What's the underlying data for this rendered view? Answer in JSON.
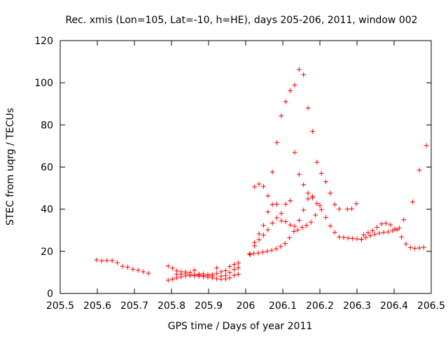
{
  "chart_data": {
    "type": "scatter",
    "title": "Rec. xmis (Lon=105, Lat=-10, h=HE), days 205-206, 2011, window 002",
    "xlabel": "GPS time / Days of year 2011",
    "ylabel": "STEC from uqrg / TECUs",
    "xlim": [
      205.5,
      206.5
    ],
    "ylim": [
      0,
      120
    ],
    "xticks": [
      205.5,
      205.6,
      205.7,
      205.8,
      205.9,
      206,
      206.1,
      206.2,
      206.3,
      206.4,
      206.5
    ],
    "xtick_labels": [
      "205.5",
      "205.6",
      "205.7",
      "205.8",
      "205.9",
      "206",
      "206.1",
      "206.2",
      "206.3",
      "206.4",
      "206.5"
    ],
    "yticks": [
      0,
      20,
      40,
      60,
      80,
      100,
      120
    ],
    "ytick_labels": [
      "0",
      "20",
      "40",
      "60",
      "80",
      "100",
      "120"
    ],
    "grid": false,
    "marker": "+",
    "color": "#ff0000",
    "series": [
      {
        "points": [
          [
            205.598,
            15.9
          ],
          [
            205.612,
            15.5
          ],
          [
            205.626,
            15.6
          ],
          [
            205.64,
            15.6
          ],
          [
            205.654,
            14.6
          ],
          [
            205.668,
            12.9
          ],
          [
            205.682,
            12.5
          ],
          [
            205.696,
            11.5
          ],
          [
            205.71,
            11.0
          ],
          [
            205.724,
            10.3
          ],
          [
            205.738,
            9.6
          ],
          [
            205.791,
            13.0
          ],
          [
            205.803,
            12.0
          ],
          [
            205.814,
            10.7
          ],
          [
            205.826,
            10.3
          ],
          [
            205.838,
            10.2
          ],
          [
            205.85,
            9.9
          ],
          [
            205.862,
            11.0
          ],
          [
            205.874,
            9.2
          ],
          [
            205.886,
            9.3
          ],
          [
            205.898,
            9.0
          ],
          [
            205.91,
            9.0
          ],
          [
            205.922,
            9.5
          ],
          [
            205.934,
            10.3
          ],
          [
            205.946,
            10.8
          ],
          [
            205.957,
            12.8
          ],
          [
            205.969,
            13.8
          ],
          [
            205.98,
            14.5
          ],
          [
            205.791,
            6.3
          ],
          [
            205.803,
            6.8
          ],
          [
            205.814,
            7.4
          ],
          [
            205.826,
            7.9
          ],
          [
            205.838,
            8.3
          ],
          [
            205.85,
            8.4
          ],
          [
            205.862,
            8.4
          ],
          [
            205.874,
            8.2
          ],
          [
            205.886,
            8.0
          ],
          [
            205.898,
            7.7
          ],
          [
            205.91,
            7.4
          ],
          [
            205.922,
            7.0
          ],
          [
            205.934,
            6.8
          ],
          [
            205.946,
            6.9
          ],
          [
            205.957,
            7.4
          ],
          [
            205.969,
            8.6
          ],
          [
            205.98,
            9.1
          ],
          [
            205.814,
            9.0
          ],
          [
            205.826,
            9.2
          ],
          [
            205.838,
            9.3
          ],
          [
            205.85,
            9.0
          ],
          [
            205.862,
            8.9
          ],
          [
            205.874,
            8.7
          ],
          [
            205.886,
            8.5
          ],
          [
            205.898,
            8.4
          ],
          [
            205.91,
            8.3
          ],
          [
            205.922,
            12.1
          ],
          [
            205.934,
            8.2
          ],
          [
            205.946,
            8.6
          ],
          [
            205.957,
            9.9
          ],
          [
            205.969,
            11.4
          ],
          [
            205.98,
            12.2
          ],
          [
            206.01,
            18.8
          ],
          [
            206.022,
            19.0
          ],
          [
            206.034,
            19.2
          ],
          [
            206.046,
            19.6
          ],
          [
            206.058,
            20.0
          ],
          [
            206.07,
            20.5
          ],
          [
            206.082,
            21.2
          ],
          [
            206.094,
            22.3
          ],
          [
            206.106,
            23.7
          ],
          [
            206.118,
            26.4
          ],
          [
            206.13,
            29.4
          ],
          [
            206.14,
            30.1
          ],
          [
            206.152,
            31.3
          ],
          [
            206.164,
            32.3
          ],
          [
            206.176,
            33.8
          ],
          [
            206.188,
            37.2
          ],
          [
            206.2,
            41.8
          ],
          [
            206.012,
            18.5
          ],
          [
            206.024,
            22.6
          ],
          [
            206.036,
            25.5
          ],
          [
            206.048,
            27.7
          ],
          [
            206.06,
            30.2
          ],
          [
            206.072,
            33.4
          ],
          [
            206.084,
            35.9
          ],
          [
            206.096,
            34.5
          ],
          [
            206.108,
            34.1
          ],
          [
            206.12,
            32.5
          ],
          [
            206.132,
            31.9
          ],
          [
            206.144,
            34.7
          ],
          [
            206.156,
            39.6
          ],
          [
            206.168,
            44.9
          ],
          [
            206.18,
            45.4
          ],
          [
            206.024,
            24.2
          ],
          [
            206.036,
            28.3
          ],
          [
            206.048,
            32.3
          ],
          [
            206.06,
            38.7
          ],
          [
            206.072,
            42.2
          ],
          [
            206.084,
            71.6
          ],
          [
            206.096,
            84.3
          ],
          [
            206.108,
            91.0
          ],
          [
            206.12,
            96.2
          ],
          [
            206.132,
            98.9
          ],
          [
            206.144,
            106.3
          ],
          [
            206.156,
            103.8
          ],
          [
            206.168,
            88.0
          ],
          [
            206.18,
            76.9
          ],
          [
            206.192,
            62.3
          ],
          [
            206.204,
            57.0
          ],
          [
            206.216,
            53.0
          ],
          [
            206.228,
            47.6
          ],
          [
            206.24,
            42.2
          ],
          [
            206.252,
            40.1
          ],
          [
            206.024,
            50.6
          ],
          [
            206.036,
            51.9
          ],
          [
            206.048,
            50.8
          ],
          [
            206.06,
            46.3
          ],
          [
            206.072,
            57.6
          ],
          [
            206.084,
            42.4
          ],
          [
            206.096,
            38.0
          ],
          [
            206.108,
            42.4
          ],
          [
            206.12,
            44.0
          ],
          [
            206.132,
            66.9
          ],
          [
            206.144,
            56.5
          ],
          [
            206.156,
            51.6
          ],
          [
            206.168,
            47.6
          ],
          [
            206.18,
            46.1
          ],
          [
            206.192,
            42.7
          ],
          [
            206.204,
            39.8
          ],
          [
            206.216,
            36.1
          ],
          [
            206.228,
            32.0
          ],
          [
            206.24,
            29.0
          ],
          [
            206.252,
            26.8
          ],
          [
            206.264,
            26.6
          ],
          [
            206.276,
            26.3
          ],
          [
            206.288,
            26.1
          ],
          [
            206.3,
            25.9
          ],
          [
            206.312,
            25.6
          ],
          [
            206.274,
            40.0
          ],
          [
            206.286,
            40.2
          ],
          [
            206.298,
            42.6
          ],
          [
            206.318,
            27.8
          ],
          [
            206.33,
            28.8
          ],
          [
            206.342,
            29.8
          ],
          [
            206.354,
            31.4
          ],
          [
            206.366,
            33.0
          ],
          [
            206.378,
            33.3
          ],
          [
            206.39,
            32.6
          ],
          [
            206.402,
            30.6
          ],
          [
            206.414,
            31.0
          ],
          [
            206.426,
            35.0
          ],
          [
            206.312,
            25.7
          ],
          [
            206.324,
            26.5
          ],
          [
            206.336,
            27.4
          ],
          [
            206.348,
            28.1
          ],
          [
            206.36,
            28.6
          ],
          [
            206.372,
            29.0
          ],
          [
            206.384,
            29.2
          ],
          [
            206.396,
            29.8
          ],
          [
            206.408,
            30.2
          ],
          [
            206.42,
            26.8
          ],
          [
            206.432,
            23.5
          ],
          [
            206.444,
            21.8
          ],
          [
            206.456,
            21.4
          ],
          [
            206.468,
            21.6
          ],
          [
            206.48,
            21.9
          ],
          [
            206.45,
            43.5
          ],
          [
            206.468,
            58.5
          ],
          [
            206.487,
            70.2
          ]
        ]
      }
    ]
  }
}
